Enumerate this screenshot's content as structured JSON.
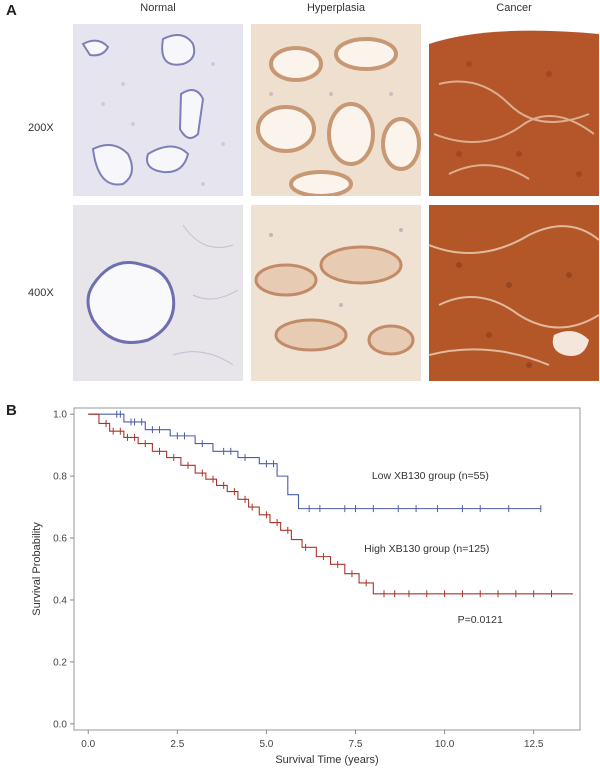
{
  "panel_a": {
    "letter": "A",
    "columns": [
      "Normal",
      "Hyperplasia",
      "Cancer"
    ],
    "rows": [
      "200X",
      "400X"
    ]
  },
  "panel_b": {
    "letter": "B"
  },
  "colors": {
    "low_group": "#4a5ea8",
    "high_group": "#a9352a",
    "normal_tissue": "#e6e5ef",
    "hyperplasia_tissue": "#eedfcf",
    "cancer_tissue": "#b5562a"
  },
  "chart_data": {
    "type": "line",
    "subtype": "kaplan-meier-step",
    "xlabel": "Survival Time (years)",
    "ylabel": "Survival Probability",
    "xlim": [
      -0.4,
      13.8
    ],
    "ylim": [
      -0.02,
      1.02
    ],
    "xticks": [
      "0.0",
      "2.5",
      "5.0",
      "7.5",
      "10.0",
      "12.5"
    ],
    "yticks": [
      "0.0",
      "0.2",
      "0.4",
      "0.6",
      "0.8",
      "1.0"
    ],
    "series": [
      {
        "name": "Low XB130 group (n=55)",
        "color": "#4a5ea8",
        "x": [
          0,
          1.0,
          1.6,
          2.3,
          3.0,
          3.5,
          4.2,
          4.8,
          5.3,
          5.6,
          5.9,
          12.7
        ],
        "y": [
          1.0,
          0.975,
          0.95,
          0.93,
          0.905,
          0.88,
          0.86,
          0.84,
          0.8,
          0.74,
          0.695,
          0.695
        ],
        "censor_x": [
          0.8,
          0.9,
          1.2,
          1.3,
          1.5,
          1.8,
          2.0,
          2.5,
          2.7,
          3.2,
          3.8,
          4.0,
          4.4,
          5.0,
          5.2,
          6.2,
          6.5,
          7.2,
          7.5,
          8.0,
          8.7,
          9.2,
          9.8,
          10.5,
          11.0,
          11.8,
          12.7
        ]
      },
      {
        "name": "High XB130 group (n=125)",
        "color": "#a9352a",
        "x": [
          0,
          0.3,
          0.6,
          1.0,
          1.4,
          1.8,
          2.2,
          2.6,
          3.0,
          3.3,
          3.6,
          3.9,
          4.2,
          4.5,
          4.8,
          5.1,
          5.4,
          5.7,
          6.0,
          6.4,
          6.8,
          7.2,
          7.6,
          8.0,
          13.6
        ],
        "y": [
          1.0,
          0.97,
          0.945,
          0.925,
          0.905,
          0.88,
          0.86,
          0.835,
          0.81,
          0.79,
          0.77,
          0.75,
          0.725,
          0.7,
          0.675,
          0.65,
          0.625,
          0.595,
          0.57,
          0.54,
          0.515,
          0.485,
          0.455,
          0.42,
          0.42
        ],
        "censor_x": [
          0.5,
          0.7,
          0.9,
          1.1,
          1.3,
          1.6,
          2.0,
          2.4,
          2.8,
          3.2,
          3.5,
          3.8,
          4.1,
          4.4,
          4.6,
          5.0,
          5.3,
          5.6,
          6.1,
          6.6,
          7.0,
          7.4,
          7.8,
          8.3,
          8.6,
          9.0,
          9.5,
          10.0,
          10.5,
          11.0,
          11.5,
          12.0,
          12.5,
          13.0
        ]
      }
    ],
    "annotations": [
      {
        "text": "Low XB130 group (n=55)",
        "x": 9.6,
        "y": 0.79
      },
      {
        "text": "High XB130 group (n=125)",
        "x": 9.5,
        "y": 0.555
      },
      {
        "text": "P=0.0121",
        "x": 11.0,
        "y": 0.325
      }
    ]
  }
}
